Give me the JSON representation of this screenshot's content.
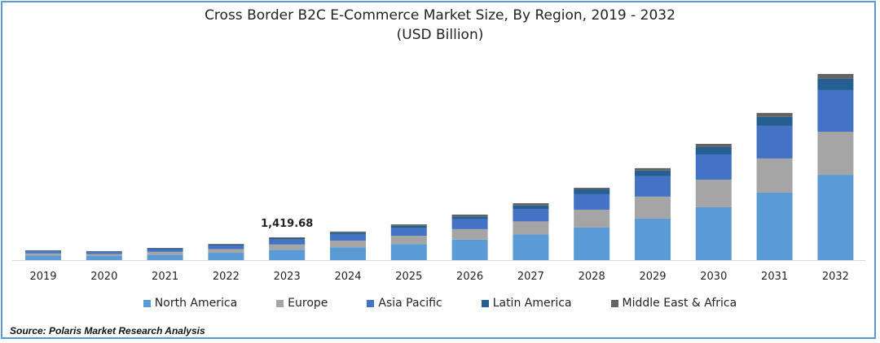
{
  "chart_data": {
    "type": "bar",
    "stacked": true,
    "title": "Cross Border B2C E-Commerce Market Size, By Region, 2019 - 2032",
    "subtitle": "(USD Billion)",
    "xlabel": "",
    "ylabel": "",
    "categories": [
      "2019",
      "2020",
      "2021",
      "2022",
      "2023",
      "2024",
      "2025",
      "2026",
      "2027",
      "2028",
      "2029",
      "2030",
      "2031",
      "2032"
    ],
    "series": [
      {
        "name": "North America",
        "color": "#5b9bd5",
        "values": [
          275,
          252,
          342,
          455,
          640,
          801,
          1004,
          1278,
          1598,
          2030,
          2590,
          3300,
          4210,
          5320
        ]
      },
      {
        "name": "Europe",
        "color": "#a5a5a5",
        "values": [
          140,
          129,
          175,
          232,
          330,
          409,
          513,
          653,
          816,
          1115,
          1370,
          1720,
          2130,
          2690
        ]
      },
      {
        "name": "Asia Pacific",
        "color": "#4472c4",
        "values": [
          134,
          123,
          167,
          222,
          310,
          392,
          491,
          625,
          781,
          965,
          1270,
          1570,
          2030,
          2590
        ]
      },
      {
        "name": "Latin America",
        "color": "#255e91",
        "values": [
          37,
          34,
          46,
          61,
          90,
          107,
          134,
          170,
          213,
          300,
          355,
          460,
          560,
          710
        ]
      },
      {
        "name": "Middle East & Africa",
        "color": "#636363",
        "values": [
          24,
          22,
          30,
          40,
          49.68,
          71,
          88,
          114,
          142,
          100,
          150,
          200,
          250,
          300
        ]
      }
    ],
    "annotations": [
      {
        "category": "2023",
        "text": "1,419.68"
      }
    ],
    "ylim": [
      0,
      11610
    ],
    "grid": false,
    "legend": "bottom"
  },
  "source": "Source: Polaris Market Research Analysis"
}
